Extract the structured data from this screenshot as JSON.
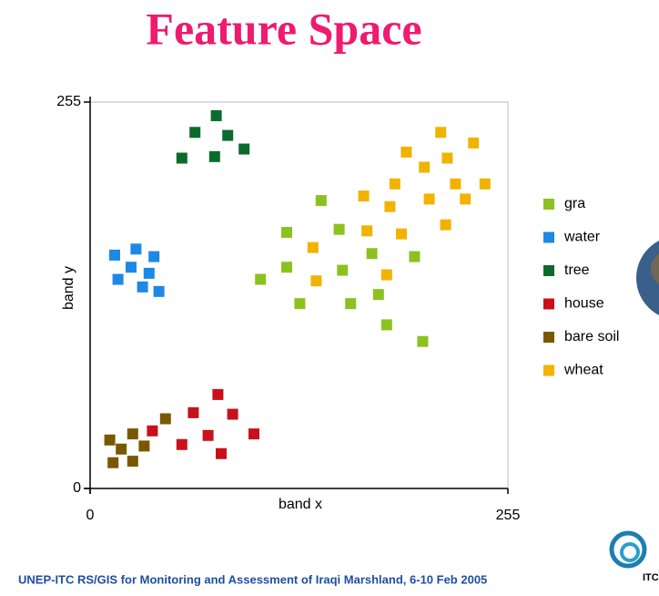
{
  "chart_data": {
    "type": "scatter",
    "title": "Feature Space",
    "xlabel": "band x",
    "ylabel": "band y",
    "xlim": [
      0,
      255
    ],
    "ylim": [
      0,
      255
    ],
    "xticks": [
      0,
      255
    ],
    "yticks": [
      0,
      255
    ],
    "legend": "right",
    "series": [
      {
        "name": "gra",
        "color": "#8cc21f",
        "x": [
          141,
          120,
          152,
          172,
          104,
          120,
          154,
          198,
          176,
          128,
          159,
          181,
          203
        ],
        "values": [
          190,
          169,
          171,
          155,
          138,
          146,
          144,
          153,
          128,
          122,
          122,
          108,
          97
        ]
      },
      {
        "name": "water",
        "color": "#1e88e5",
        "x": [
          15,
          28,
          39,
          25,
          36,
          17,
          32,
          42
        ],
        "values": [
          154,
          158,
          153,
          146,
          142,
          138,
          133,
          130
        ]
      },
      {
        "name": "tree",
        "color": "#0b6b2c",
        "x": [
          77,
          64,
          84,
          94,
          56,
          76
        ],
        "values": [
          246,
          235,
          233,
          224,
          218,
          219
        ]
      },
      {
        "name": "house",
        "color": "#c8111b",
        "x": [
          78,
          63,
          87,
          38,
          72,
          100,
          56,
          80
        ],
        "values": [
          62,
          50,
          49,
          38,
          35,
          36,
          29,
          23
        ]
      },
      {
        "name": "bare soil",
        "color": "#7a5800",
        "x": [
          46,
          26,
          12,
          19,
          33,
          26,
          14
        ],
        "values": [
          46,
          36,
          32,
          26,
          28,
          18,
          17
        ]
      },
      {
        "name": "wheat",
        "color": "#f2b300",
        "x": [
          193,
          214,
          234,
          204,
          218,
          167,
          186,
          223,
          241,
          183,
          207,
          229,
          136,
          169,
          190,
          217,
          138,
          181
        ],
        "values": [
          222,
          235,
          228,
          212,
          218,
          193,
          201,
          201,
          201,
          186,
          191,
          191,
          159,
          170,
          168,
          174,
          137,
          141
        ]
      }
    ]
  },
  "footer": "UNEP-ITC RS/GIS for Monitoring and Assessment of Iraqi Marshland, 6-10 Feb 2005",
  "logo_text": "ITC"
}
